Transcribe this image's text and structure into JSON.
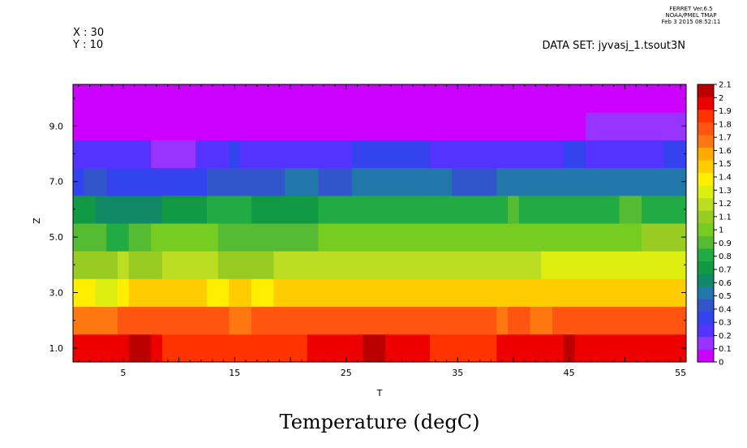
{
  "header": {
    "probe_x": "X : 30",
    "probe_y": "Y : 10",
    "ferret_line1": "FERRET  Ver.6.5",
    "ferret_line2": "NOAA/PMEL TMAP",
    "ferret_line3": "Feb  3 2015 08:52:11",
    "dataset": "DATA SET: jyvasj_1.tsout3N"
  },
  "chart_data": {
    "type": "heatmap",
    "title": "Temperature (degC)",
    "xlabel": "T",
    "ylabel": "Z",
    "xlim": [
      0.5,
      55.5
    ],
    "ylim": [
      0.5,
      10.5
    ],
    "x_ticks": [
      5,
      15,
      25,
      35,
      45,
      55
    ],
    "x_tick_labels": [
      "5",
      "15",
      "25",
      "35",
      "45",
      "55"
    ],
    "y_ticks": [
      1,
      3,
      5,
      7,
      9
    ],
    "y_tick_labels": [
      "1.0",
      "3.0",
      "5.0",
      "7.0",
      "9.0"
    ],
    "z_centers": [
      1,
      2,
      3,
      4,
      5,
      6,
      7,
      8,
      9,
      10
    ],
    "rows": [
      {
        "z": 1,
        "segments": [
          [
            0.5,
            5.5,
            2.05
          ],
          [
            5.5,
            7.5,
            2.1
          ],
          [
            7.5,
            8.5,
            2.05
          ],
          [
            8.5,
            12.5,
            1.95
          ],
          [
            12.5,
            16.5,
            1.9
          ],
          [
            16.5,
            21.5,
            1.95
          ],
          [
            21.5,
            26.5,
            2.05
          ],
          [
            26.5,
            28.5,
            2.1
          ],
          [
            28.5,
            32.5,
            2.05
          ],
          [
            32.5,
            38.5,
            1.95
          ],
          [
            38.5,
            44.5,
            2.05
          ],
          [
            44.5,
            45.5,
            2.1
          ],
          [
            45.5,
            55.5,
            2.05
          ]
        ]
      },
      {
        "z": 2,
        "segments": [
          [
            0.5,
            4.5,
            1.75
          ],
          [
            4.5,
            14.5,
            1.85
          ],
          [
            14.5,
            16.5,
            1.75
          ],
          [
            16.5,
            38.5,
            1.85
          ],
          [
            38.5,
            39.5,
            1.75
          ],
          [
            39.5,
            41.5,
            1.85
          ],
          [
            41.5,
            43.5,
            1.75
          ],
          [
            43.5,
            55.5,
            1.85
          ]
        ]
      },
      {
        "z": 3,
        "segments": [
          [
            0.5,
            2.5,
            1.45
          ],
          [
            2.5,
            4.5,
            1.35
          ],
          [
            4.5,
            5.5,
            1.45
          ],
          [
            5.5,
            12.5,
            1.55
          ],
          [
            12.5,
            14.5,
            1.45
          ],
          [
            14.5,
            16.5,
            1.55
          ],
          [
            16.5,
            18.5,
            1.45
          ],
          [
            18.5,
            55.5,
            1.55
          ]
        ]
      },
      {
        "z": 4,
        "segments": [
          [
            0.5,
            4.5,
            1.15
          ],
          [
            4.5,
            5.5,
            1.25
          ],
          [
            5.5,
            8.5,
            1.15
          ],
          [
            8.5,
            13.5,
            1.25
          ],
          [
            13.5,
            18.5,
            1.15
          ],
          [
            18.5,
            42.5,
            1.25
          ],
          [
            42.5,
            55.5,
            1.35
          ]
        ]
      },
      {
        "z": 5,
        "segments": [
          [
            0.5,
            3.5,
            0.95
          ],
          [
            3.5,
            5.5,
            0.85
          ],
          [
            5.5,
            7.5,
            0.95
          ],
          [
            7.5,
            12.5,
            1.0
          ],
          [
            12.5,
            13.5,
            1.05
          ],
          [
            13.5,
            22.5,
            0.95
          ],
          [
            22.5,
            51.5,
            1.05
          ],
          [
            51.5,
            55.5,
            1.1
          ]
        ]
      },
      {
        "z": 6,
        "segments": [
          [
            0.5,
            2.5,
            0.75
          ],
          [
            2.5,
            8.5,
            0.65
          ],
          [
            8.5,
            12.5,
            0.75
          ],
          [
            12.5,
            16.5,
            0.8
          ],
          [
            16.5,
            22.5,
            0.75
          ],
          [
            22.5,
            25.5,
            0.8
          ],
          [
            25.5,
            28.5,
            0.85
          ],
          [
            28.5,
            36.5,
            0.8
          ],
          [
            36.5,
            39.5,
            0.85
          ],
          [
            39.5,
            40.5,
            0.9
          ],
          [
            40.5,
            49.5,
            0.85
          ],
          [
            49.5,
            51.5,
            0.95
          ],
          [
            51.5,
            55.5,
            0.85
          ]
        ]
      },
      {
        "z": 7,
        "segments": [
          [
            0.5,
            1.5,
            0.35
          ],
          [
            1.5,
            3.5,
            0.45
          ],
          [
            3.5,
            12.5,
            0.35
          ],
          [
            12.5,
            19.5,
            0.45
          ],
          [
            19.5,
            22.5,
            0.5
          ],
          [
            22.5,
            25.5,
            0.4
          ],
          [
            25.5,
            34.5,
            0.5
          ],
          [
            34.5,
            38.5,
            0.4
          ],
          [
            38.5,
            53.5,
            0.5
          ],
          [
            53.5,
            55.5,
            0.55
          ]
        ]
      },
      {
        "z": 8,
        "segments": [
          [
            0.5,
            7.5,
            0.25
          ],
          [
            7.5,
            11.5,
            0.15
          ],
          [
            11.5,
            14.5,
            0.25
          ],
          [
            14.5,
            15.5,
            0.3
          ],
          [
            15.5,
            25.5,
            0.25
          ],
          [
            25.5,
            32.5,
            0.3
          ],
          [
            32.5,
            44.5,
            0.25
          ],
          [
            44.5,
            46.5,
            0.3
          ],
          [
            46.5,
            53.5,
            0.25
          ],
          [
            53.5,
            55.5,
            0.3
          ]
        ]
      },
      {
        "z": 9,
        "segments": [
          [
            0.5,
            46.5,
            0.05
          ],
          [
            46.5,
            55.5,
            0.1
          ]
        ]
      },
      {
        "z": 10,
        "segments": [
          [
            0.5,
            55.5,
            0.05
          ]
        ]
      }
    ],
    "colorbar": {
      "levels": [
        0,
        0.1,
        0.2,
        0.3,
        0.4,
        0.5,
        0.6,
        0.7,
        0.8,
        0.9,
        1,
        1.1,
        1.2,
        1.3,
        1.4,
        1.5,
        1.6,
        1.7,
        1.8,
        1.9,
        2,
        2.1
      ],
      "labels": [
        "0",
        "0.1",
        "0.2",
        "0.3",
        "0.4",
        "0.5",
        "0.6",
        "0.7",
        "0.8",
        "0.9",
        "1",
        "1.1",
        "1.2",
        "1.3",
        "1.4",
        "1.5",
        "1.6",
        "1.7",
        "1.8",
        "1.9",
        "2",
        "2.1"
      ],
      "colors": [
        "#cc00ff",
        "#9933ff",
        "#5533ff",
        "#3344ee",
        "#3355cc",
        "#2277aa",
        "#118866",
        "#119944",
        "#22aa44",
        "#55bb33",
        "#77cc22",
        "#99cc22",
        "#bbdd22",
        "#ddee11",
        "#ffee00",
        "#ffcc00",
        "#ffaa00",
        "#ff7711",
        "#ff5511",
        "#ff3300",
        "#ee0000",
        "#bb0000"
      ]
    }
  }
}
